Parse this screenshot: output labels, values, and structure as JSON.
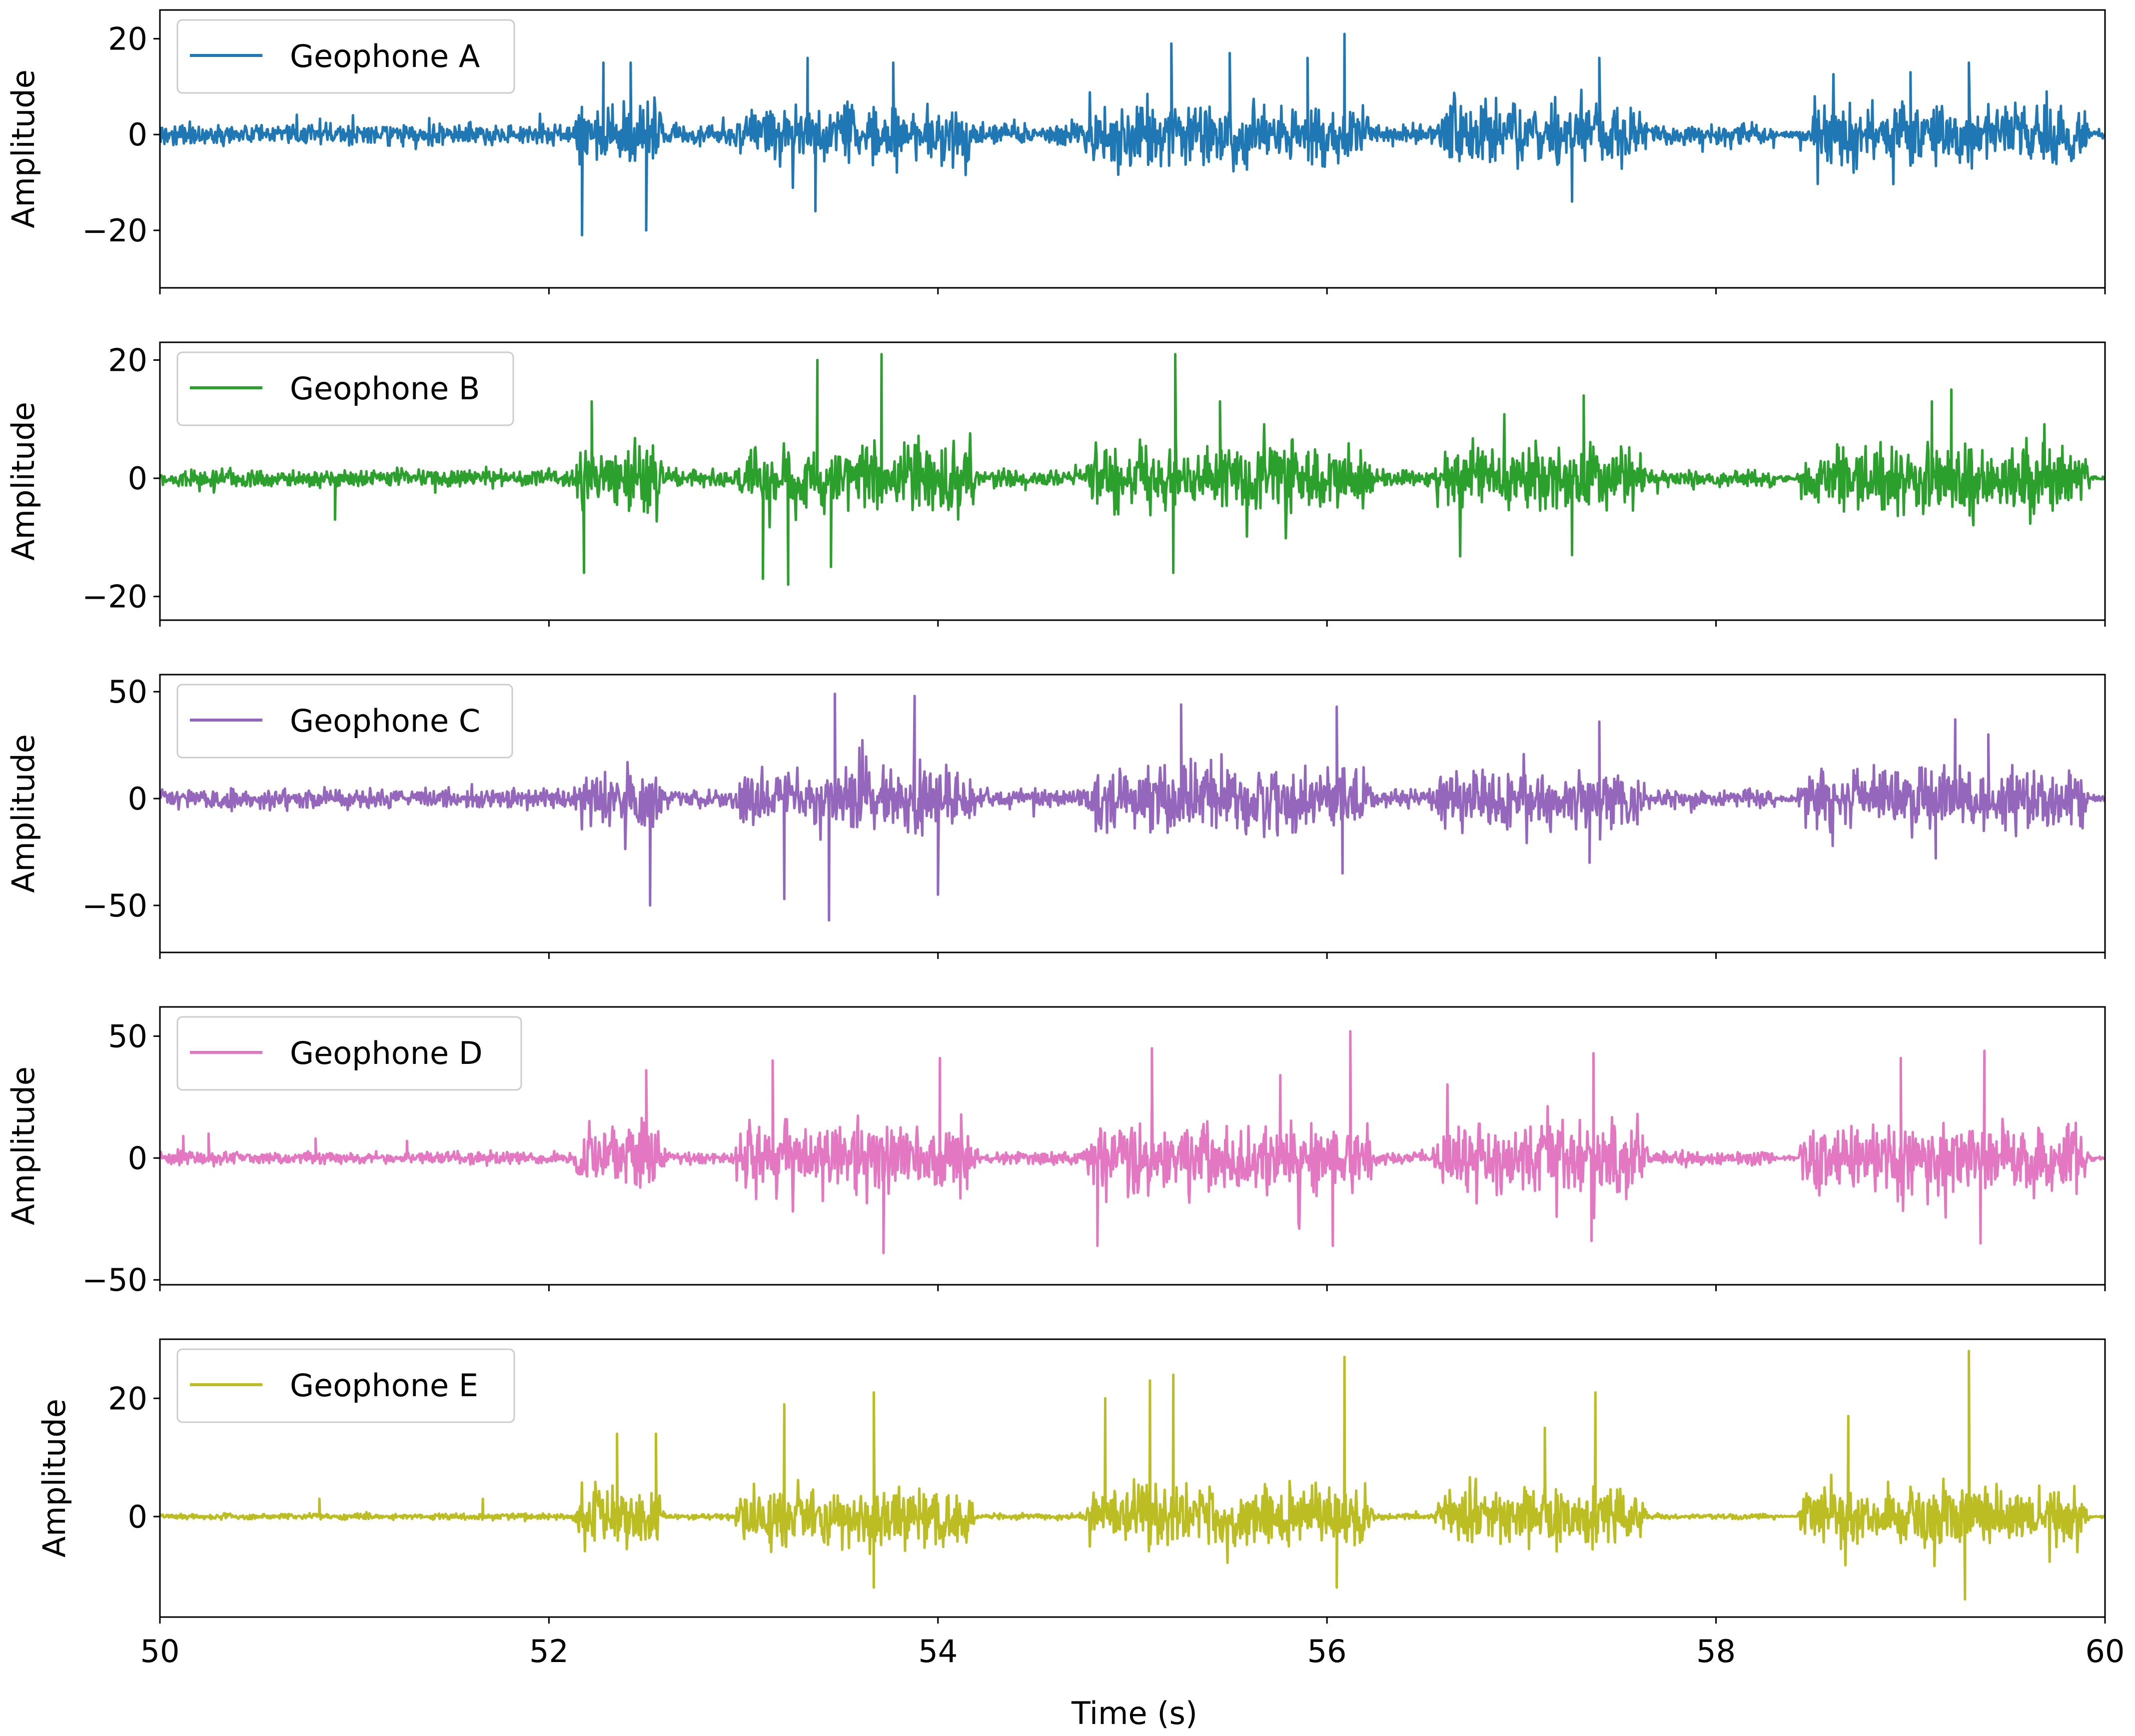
{
  "chart_data": {
    "type": "line",
    "layout": "5 vertically stacked panels sharing x axis",
    "xlabel": "Time (s)",
    "xlim": [
      50,
      60
    ],
    "xticks": [
      50,
      52,
      54,
      56,
      58,
      60
    ],
    "grid": false,
    "legend_position": "top-left",
    "bursts": [
      {
        "start": 52.12,
        "end": 52.6
      },
      {
        "start": 52.95,
        "end": 54.2
      },
      {
        "start": 54.75,
        "end": 56.25
      },
      {
        "start": 56.55,
        "end": 57.65
      },
      {
        "start": 58.42,
        "end": 59.92
      }
    ],
    "panels": [
      {
        "name": "Geophone A",
        "color": "#1f77b4",
        "ylabel": "Amplitude",
        "ylim": [
          -32,
          26
        ],
        "yticks": [
          -20,
          0,
          20
        ],
        "baseline": 3.0,
        "burst_amp": 9.0,
        "spikes": [
          [
            52.17,
            -21
          ],
          [
            52.28,
            15
          ],
          [
            52.42,
            15
          ],
          [
            52.5,
            -20
          ],
          [
            53.33,
            16
          ],
          [
            53.37,
            -16
          ],
          [
            53.77,
            15
          ],
          [
            55.2,
            19
          ],
          [
            55.5,
            17
          ],
          [
            55.9,
            16
          ],
          [
            56.09,
            21
          ],
          [
            57.26,
            -14
          ],
          [
            57.4,
            16
          ],
          [
            59.0,
            13
          ],
          [
            59.3,
            15
          ],
          [
            59.7,
            9
          ]
        ],
        "series": []
      },
      {
        "name": "Geophone B",
        "color": "#2ca02c",
        "ylabel": "Amplitude",
        "ylim": [
          -24,
          23
        ],
        "yticks": [
          -20,
          0,
          20
        ],
        "baseline": 2.0,
        "burst_amp": 8.0,
        "spikes": [
          [
            50.9,
            -7
          ],
          [
            52.18,
            -16
          ],
          [
            52.22,
            13
          ],
          [
            53.1,
            -17
          ],
          [
            53.23,
            -18
          ],
          [
            53.38,
            20
          ],
          [
            53.71,
            21
          ],
          [
            53.45,
            -15
          ],
          [
            54.45,
            -2
          ],
          [
            55.21,
            -16
          ],
          [
            55.22,
            21
          ],
          [
            55.45,
            13
          ],
          [
            57.26,
            -13
          ],
          [
            57.32,
            14
          ],
          [
            59.11,
            13
          ],
          [
            59.21,
            15
          ]
        ],
        "series": []
      },
      {
        "name": "Geophone C",
        "color": "#9467bd",
        "ylabel": "Amplitude",
        "ylim": [
          -72,
          58
        ],
        "yticks": [
          -50,
          0,
          50
        ],
        "baseline": 6.0,
        "burst_amp": 20.0,
        "spikes": [
          [
            52.52,
            -50
          ],
          [
            53.21,
            -47
          ],
          [
            53.47,
            49
          ],
          [
            53.44,
            -57
          ],
          [
            53.88,
            48
          ],
          [
            54.0,
            -45
          ],
          [
            55.25,
            44
          ],
          [
            56.05,
            43
          ],
          [
            56.08,
            -35
          ],
          [
            57.4,
            36
          ],
          [
            57.35,
            -30
          ],
          [
            59.23,
            37
          ],
          [
            59.4,
            30
          ],
          [
            59.13,
            -28
          ]
        ],
        "series": []
      },
      {
        "name": "Geophone D",
        "color": "#e377c2",
        "ylabel": "Amplitude",
        "ylim": [
          -52,
          62
        ],
        "yticks": [
          -50,
          0,
          50
        ],
        "baseline": 3.5,
        "burst_amp": 20.0,
        "spikes": [
          [
            50.12,
            9
          ],
          [
            50.25,
            10
          ],
          [
            50.8,
            8
          ],
          [
            51.27,
            7
          ],
          [
            52.5,
            36
          ],
          [
            53.15,
            40
          ],
          [
            53.72,
            -39
          ],
          [
            54.01,
            41
          ],
          [
            54.82,
            -36
          ],
          [
            55.1,
            45
          ],
          [
            55.76,
            34
          ],
          [
            56.12,
            52
          ],
          [
            56.03,
            -36
          ],
          [
            57.37,
            43
          ],
          [
            57.36,
            -34
          ],
          [
            58.95,
            41
          ],
          [
            59.38,
            44
          ],
          [
            59.36,
            -35
          ]
        ],
        "series": []
      },
      {
        "name": "Geophone E",
        "color": "#bcbd22",
        "ylabel": "Amplitude",
        "ylim": [
          -17,
          30
        ],
        "yticks": [
          0,
          20
        ],
        "baseline": 0.7,
        "burst_amp": 7.0,
        "spikes": [
          [
            50.82,
            3
          ],
          [
            51.66,
            3
          ],
          [
            52.35,
            14
          ],
          [
            52.55,
            14
          ],
          [
            53.21,
            19
          ],
          [
            53.67,
            -12
          ],
          [
            53.67,
            21
          ],
          [
            54.86,
            20
          ],
          [
            55.09,
            23
          ],
          [
            55.21,
            24
          ],
          [
            56.09,
            27
          ],
          [
            56.05,
            -12
          ],
          [
            57.12,
            15
          ],
          [
            57.38,
            21
          ],
          [
            58.68,
            17
          ],
          [
            59.3,
            28
          ],
          [
            59.28,
            -14
          ]
        ],
        "series": []
      }
    ]
  }
}
